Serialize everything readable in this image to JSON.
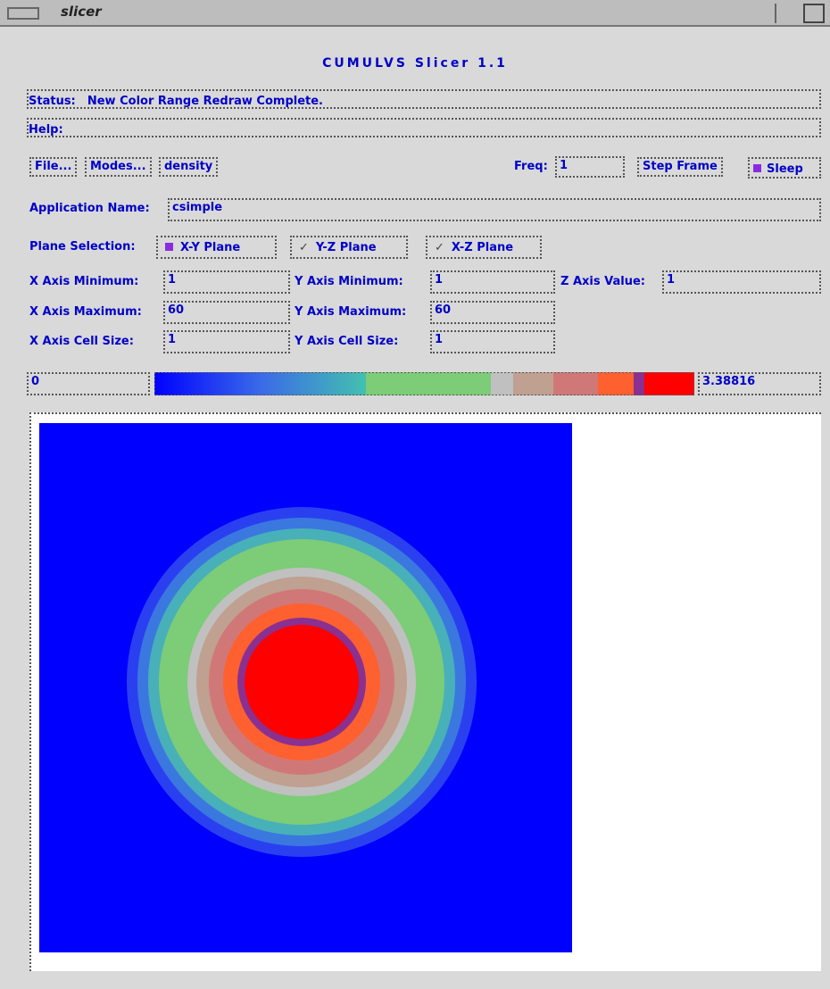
{
  "window": {
    "title": "slicer"
  },
  "app_title": "CUMULVS Slicer 1.1",
  "status": {
    "label": "Status:",
    "text": "New Color Range Redraw Complete."
  },
  "help": {
    "label": "Help:"
  },
  "toolbar": {
    "file": "File...",
    "modes": "Modes...",
    "field": "density",
    "freq_label": "Freq:",
    "freq_value": "1",
    "step_frame": "Step Frame",
    "sleep": "Sleep"
  },
  "application": {
    "label": "Application Name:",
    "value": "csimple"
  },
  "plane": {
    "label": "Plane Selection:",
    "options": [
      "X-Y Plane",
      "Y-Z Plane",
      "X-Z Plane"
    ]
  },
  "axes": {
    "x_min": {
      "label": "X Axis Minimum:",
      "value": "1"
    },
    "y_min": {
      "label": "Y Axis Minimum:",
      "value": "1"
    },
    "z_value": {
      "label": "Z Axis Value:",
      "value": "1"
    },
    "x_max": {
      "label": "X Axis Maximum:",
      "value": "60"
    },
    "y_max": {
      "label": "Y Axis Maximum:",
      "value": "60"
    },
    "x_cell": {
      "label": "X Axis Cell Size:",
      "value": "1"
    },
    "y_cell": {
      "label": "Y Axis Cell Size:",
      "value": "1"
    }
  },
  "color_range": {
    "min": "0",
    "max": "3.38816"
  }
}
